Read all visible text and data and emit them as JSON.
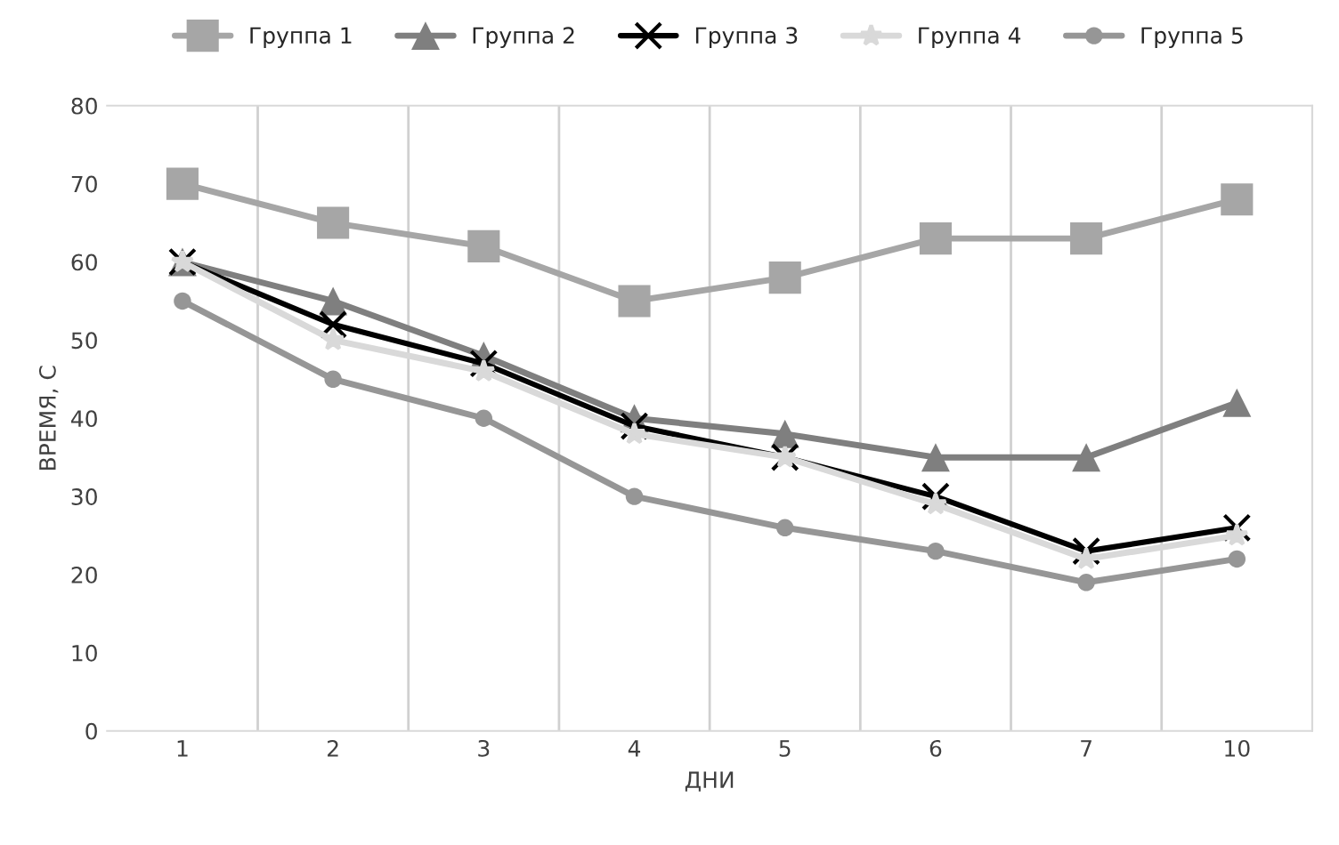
{
  "chart_data": {
    "type": "line",
    "xlabel": "ДНИ",
    "ylabel": "ВРЕМЯ, С",
    "categories": [
      "1",
      "2",
      "3",
      "4",
      "5",
      "6",
      "7",
      "10"
    ],
    "series": [
      {
        "name": "Группа 1",
        "color": "#a6a6a6",
        "marker": "square",
        "values": [
          70,
          65,
          62,
          55,
          58,
          63,
          63,
          68
        ]
      },
      {
        "name": "Группа 2",
        "color": "#7f7f7f",
        "marker": "triangle",
        "values": [
          60,
          55,
          48,
          40,
          38,
          35,
          35,
          42
        ]
      },
      {
        "name": "Группа 3",
        "color": "#000000",
        "marker": "cross",
        "values": [
          60,
          52,
          47,
          39,
          35,
          30,
          23,
          26
        ]
      },
      {
        "name": "Группа 4",
        "color": "#d9d9d9",
        "marker": "star",
        "values": [
          60,
          50,
          46,
          38,
          35,
          29,
          22,
          25
        ]
      },
      {
        "name": "Группа 5",
        "color": "#969696",
        "marker": "circle",
        "values": [
          55,
          45,
          40,
          30,
          26,
          23,
          19,
          22
        ]
      }
    ],
    "ylim": [
      0,
      80
    ],
    "yticks": [
      0,
      10,
      20,
      30,
      40,
      50,
      60,
      70,
      80
    ],
    "grid": "x",
    "legend": "top",
    "line_style": "solid"
  }
}
